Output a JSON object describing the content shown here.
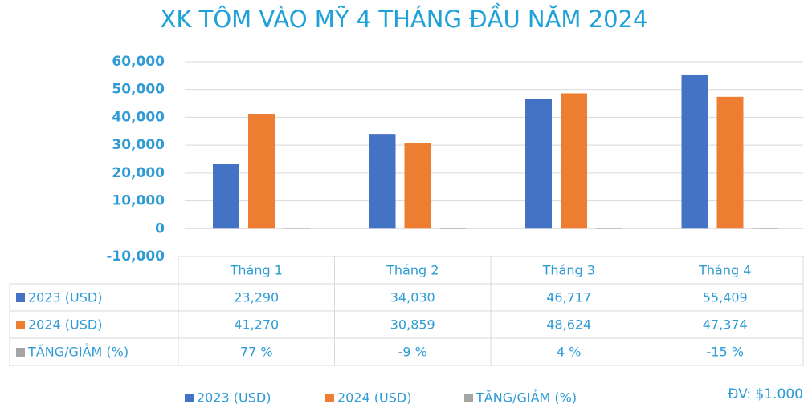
{
  "chart_data": {
    "type": "bar",
    "title": "XK TÔM VÀO MỸ 4 THÁNG ĐẦU NĂM 2024",
    "categories": [
      "Tháng 1",
      "Tháng 2",
      "Tháng 3",
      "Tháng 4"
    ],
    "series": [
      {
        "name": "2023 (USD)",
        "color": "#4472c4",
        "values": [
          23290,
          34030,
          46717,
          55409
        ],
        "value_labels": [
          "23,290",
          "34,030",
          "46,717",
          "55,409"
        ]
      },
      {
        "name": "2024 (USD)",
        "color": "#ed7d31",
        "values": [
          41270,
          30859,
          48624,
          47374
        ],
        "value_labels": [
          "41,270",
          "30,859",
          "48,624",
          "47,374"
        ]
      },
      {
        "name": "TĂNG/GIẢM (%)",
        "color": "#a5a5a5",
        "values": [
          77,
          -9,
          4,
          -15
        ],
        "value_labels": [
          "77 %",
          "-9 %",
          "4 %",
          "-15 %"
        ]
      }
    ],
    "ylim": [
      -10000,
      60000
    ],
    "yticks": [
      {
        "value": -10000,
        "label": "-10,000"
      },
      0,
      {
        "value": 10000,
        "label": "10,000"
      },
      {
        "value": 20000,
        "label": "20,000"
      },
      {
        "value": 30000,
        "label": "30,000"
      },
      {
        "value": 40000,
        "label": "40,000"
      },
      {
        "value": 50000,
        "label": "50,000"
      },
      {
        "value": 60000,
        "label": "60,000"
      }
    ],
    "grid": true,
    "note": "ĐV: $1.000"
  }
}
